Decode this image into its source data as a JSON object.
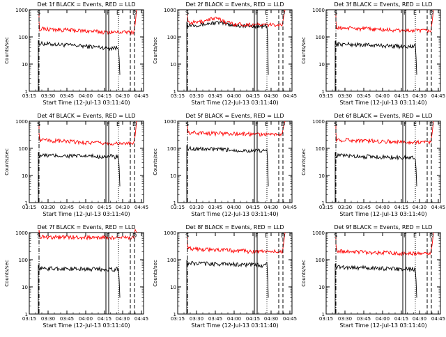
{
  "chart_data": [
    {
      "type": "line",
      "title": "Det 1f BLACK = Events, RED = LLD",
      "xlabel": "Start Time (12-Jul-13 03:11:40)",
      "ylabel": "Counts/sec",
      "yscale": "log",
      "ylim": [
        1,
        1000
      ],
      "x_tick_labels": [
        "03:15",
        "03:30",
        "03:45",
        "04:00",
        "04:15",
        "04:30",
        "04:45"
      ],
      "y_tick_labels": [
        "1",
        "10",
        "100",
        "1000"
      ],
      "series": [
        {
          "name": "Events",
          "color": "#000000",
          "level": 58,
          "end_level": 40
        },
        {
          "name": "LLD",
          "color": "#ff0000",
          "level": 200,
          "end_level": 150
        }
      ],
      "markers": {
        "solid": [
          "S",
          "F"
        ],
        "dotted": [
          "E"
        ],
        "dashed": [
          "D"
        ]
      }
    },
    {
      "type": "line",
      "title": "Det 2f BLACK = Events, RED = LLD",
      "xlabel": "Start Time (12-Jul-13 03:11:40)",
      "ylabel": "Counts/sec",
      "yscale": "log",
      "ylim": [
        1,
        1000
      ],
      "x_tick_labels": [
        "03:15",
        "03:30",
        "03:45",
        "04:00",
        "04:15",
        "04:30",
        "04:45"
      ],
      "y_tick_labels": [
        "1",
        "10",
        "100",
        "1000"
      ],
      "series": [
        {
          "name": "Events",
          "color": "#000000",
          "level": 280,
          "end_level": 250
        },
        {
          "name": "LLD",
          "color": "#ff0000",
          "level": 340,
          "end_level": 280
        }
      ],
      "markers": {
        "solid": [
          "S",
          "F"
        ],
        "dotted": [
          "E"
        ],
        "dashed": [
          "D"
        ]
      }
    },
    {
      "type": "line",
      "title": "Det 3f BLACK = Events, RED = LLD",
      "xlabel": "Start Time (12-Jul-13 03:11:40)",
      "ylabel": "Counts/sec",
      "yscale": "log",
      "ylim": [
        1,
        1000
      ],
      "x_tick_labels": [
        "03:15",
        "03:30",
        "03:45",
        "04:00",
        "04:15",
        "04:30",
        "04:45"
      ],
      "y_tick_labels": [
        "1",
        "10",
        "100",
        "1000"
      ],
      "series": [
        {
          "name": "Events",
          "color": "#000000",
          "level": 55,
          "end_level": 45
        },
        {
          "name": "LLD",
          "color": "#ff0000",
          "level": 220,
          "end_level": 170
        }
      ],
      "markers": {
        "solid": [
          "S",
          "F"
        ],
        "dotted": [
          "E"
        ],
        "dashed": [
          "D"
        ]
      }
    },
    {
      "type": "line",
      "title": "Det 4f BLACK = Events, RED = LLD",
      "xlabel": "Start Time (12-Jul-13 03:11:40)",
      "ylabel": "Counts/sec",
      "yscale": "log",
      "ylim": [
        1,
        1000
      ],
      "x_tick_labels": [
        "03:15",
        "03:30",
        "03:45",
        "04:00",
        "04:15",
        "04:30",
        "04:45"
      ],
      "y_tick_labels": [
        "1",
        "10",
        "100",
        "1000"
      ],
      "series": [
        {
          "name": "Events",
          "color": "#000000",
          "level": 55,
          "end_level": 50
        },
        {
          "name": "LLD",
          "color": "#ff0000",
          "level": 200,
          "end_level": 150
        }
      ],
      "markers": {
        "solid": [
          "S",
          "F"
        ],
        "dotted": [
          "E"
        ],
        "dashed": [
          "D"
        ]
      }
    },
    {
      "type": "line",
      "title": "Det 5f BLACK = Events, RED = LLD",
      "xlabel": "Start Time (12-Jul-13 03:11:40)",
      "ylabel": "Counts/sec",
      "yscale": "log",
      "ylim": [
        1,
        1000
      ],
      "x_tick_labels": [
        "03:15",
        "03:30",
        "03:45",
        "04:00",
        "04:15",
        "04:30",
        "04:45"
      ],
      "y_tick_labels": [
        "1",
        "10",
        "100",
        "1000"
      ],
      "series": [
        {
          "name": "Events",
          "color": "#000000",
          "level": 100,
          "end_level": 80
        },
        {
          "name": "LLD",
          "color": "#ff0000",
          "level": 380,
          "end_level": 330
        }
      ],
      "markers": {
        "solid": [
          "S",
          "F"
        ],
        "dotted": [
          "E"
        ],
        "dashed": [
          "D"
        ]
      }
    },
    {
      "type": "line",
      "title": "Det 6f BLACK = Events, RED = LLD",
      "xlabel": "Start Time (12-Jul-13 03:11:40)",
      "ylabel": "Counts/sec",
      "yscale": "log",
      "ylim": [
        1,
        1000
      ],
      "x_tick_labels": [
        "03:15",
        "03:30",
        "03:45",
        "04:00",
        "04:15",
        "04:30",
        "04:45"
      ],
      "y_tick_labels": [
        "1",
        "10",
        "100",
        "1000"
      ],
      "series": [
        {
          "name": "Events",
          "color": "#000000",
          "level": 55,
          "end_level": 45
        },
        {
          "name": "LLD",
          "color": "#ff0000",
          "level": 210,
          "end_level": 170
        }
      ],
      "markers": {
        "solid": [
          "S",
          "F"
        ],
        "dotted": [
          "E"
        ],
        "dashed": [
          "D"
        ]
      }
    },
    {
      "type": "line",
      "title": "Det 7f BLACK = Events, RED = LLD",
      "xlabel": "Start Time (12-Jul-13 03:11:40)",
      "ylabel": "Counts/sec",
      "yscale": "log",
      "ylim": [
        1,
        1000
      ],
      "x_tick_labels": [
        "03:15",
        "03:30",
        "03:45",
        "04:00",
        "04:15",
        "04:30",
        "04:45"
      ],
      "y_tick_labels": [
        "1",
        "10",
        "100",
        "1000"
      ],
      "series": [
        {
          "name": "Events",
          "color": "#000000",
          "level": 48,
          "end_level": 45
        },
        {
          "name": "LLD",
          "color": "#ff0000",
          "level": 700,
          "end_level": 650
        }
      ],
      "markers": {
        "solid": [
          "S",
          "F"
        ],
        "dotted": [
          "E"
        ],
        "dashed": [
          "D"
        ]
      }
    },
    {
      "type": "line",
      "title": "Det 8f BLACK = Events, RED = LLD",
      "xlabel": "Start Time (12-Jul-13 03:11:40)",
      "ylabel": "Counts/sec",
      "yscale": "log",
      "ylim": [
        1,
        1000
      ],
      "x_tick_labels": [
        "03:15",
        "03:30",
        "03:45",
        "04:00",
        "04:15",
        "04:30",
        "04:45"
      ],
      "y_tick_labels": [
        "1",
        "10",
        "100",
        "1000"
      ],
      "series": [
        {
          "name": "Events",
          "color": "#000000",
          "level": 75,
          "end_level": 65
        },
        {
          "name": "LLD",
          "color": "#ff0000",
          "level": 260,
          "end_level": 200
        }
      ],
      "markers": {
        "solid": [
          "S",
          "F"
        ],
        "dotted": [
          "E"
        ],
        "dashed": [
          "D"
        ]
      }
    },
    {
      "type": "line",
      "title": "Det 9f BLACK = Events, RED = LLD",
      "xlabel": "Start Time (12-Jul-13 03:11:40)",
      "ylabel": "Counts/sec",
      "yscale": "log",
      "ylim": [
        1,
        1000
      ],
      "x_tick_labels": [
        "03:15",
        "03:30",
        "03:45",
        "04:00",
        "04:15",
        "04:30",
        "04:45"
      ],
      "y_tick_labels": [
        "1",
        "10",
        "100",
        "1000"
      ],
      "series": [
        {
          "name": "Events",
          "color": "#000000",
          "level": 55,
          "end_level": 45
        },
        {
          "name": "LLD",
          "color": "#ff0000",
          "level": 210,
          "end_level": 170
        }
      ],
      "markers": {
        "solid": [
          "S",
          "F"
        ],
        "dotted": [
          "E"
        ],
        "dashed": [
          "D"
        ]
      }
    }
  ]
}
